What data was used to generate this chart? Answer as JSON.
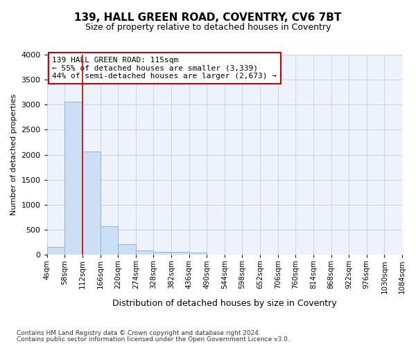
{
  "title1": "139, HALL GREEN ROAD, COVENTRY, CV6 7BT",
  "title2": "Size of property relative to detached houses in Coventry",
  "xlabel": "Distribution of detached houses by size in Coventry",
  "ylabel": "Number of detached properties",
  "footer1": "Contains HM Land Registry data © Crown copyright and database right 2024.",
  "footer2": "Contains public sector information licensed under the Open Government Licence v3.0.",
  "annotation_line1": "139 HALL GREEN ROAD: 115sqm",
  "annotation_line2": "← 55% of detached houses are smaller (3,339)",
  "annotation_line3": "44% of semi-detached houses are larger (2,673) →",
  "bar_color": "#ccdff5",
  "bar_edge_color": "#8ab4d8",
  "grid_color": "#c8d4e8",
  "bg_color": "#eef2fa",
  "vline_color": "#cc0000",
  "bin_edges": [
    4,
    58,
    112,
    166,
    220,
    274,
    328,
    382,
    436,
    490,
    544,
    598,
    652,
    706,
    760,
    814,
    868,
    922,
    976,
    1030,
    1084
  ],
  "bar_heights": [
    150,
    3060,
    2060,
    570,
    205,
    90,
    55,
    50,
    45,
    0,
    0,
    0,
    0,
    0,
    0,
    0,
    0,
    0,
    0,
    0
  ],
  "vline_x": 112,
  "ylim": [
    0,
    4000
  ],
  "yticks": [
    0,
    500,
    1000,
    1500,
    2000,
    2500,
    3000,
    3500,
    4000
  ],
  "xtick_labels": [
    "4sqm",
    "58sqm",
    "112sqm",
    "166sqm",
    "220sqm",
    "274sqm",
    "328sqm",
    "382sqm",
    "436sqm",
    "490sqm",
    "544sqm",
    "598sqm",
    "652sqm",
    "706sqm",
    "760sqm",
    "814sqm",
    "868sqm",
    "922sqm",
    "976sqm",
    "1030sqm",
    "1084sqm"
  ],
  "title1_fontsize": 11,
  "title2_fontsize": 9,
  "ylabel_fontsize": 8,
  "xlabel_fontsize": 9,
  "footer_fontsize": 6.5
}
